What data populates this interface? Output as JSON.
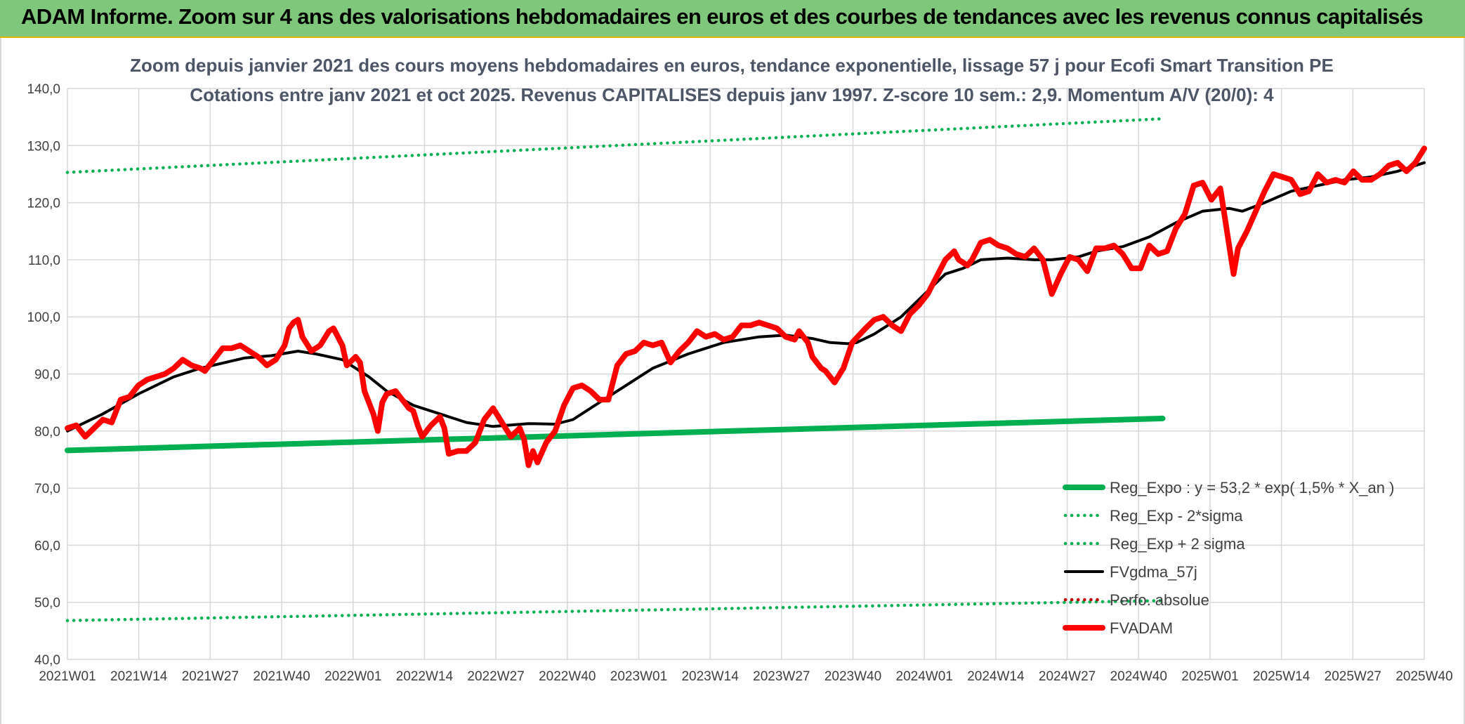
{
  "banner": {
    "title": "ADAM Informe. Zoom sur 4 ans des valorisations hebdomadaires en euros et des courbes de tendances avec les revenus connus capitalisés"
  },
  "colors": {
    "banner_bg": "#7fc77a",
    "reg_green": "#00b050",
    "fvadam_red": "#ff0000",
    "gdma_black": "#000000",
    "perfo_red": "#c00000"
  },
  "chart_data": {
    "type": "line",
    "title_lines": [
      "Zoom depuis janvier 2021 des cours moyens hebdomadaires en euros, tendance exponentielle, lissage 57 j pour Ecofi Smart Transition PE",
      "Cotations entre janv 2021 et oct 2025. Revenus CAPITALISES depuis janv 1997. Z-score 10 sem.: 2,9. Momentum A/V (20/0): 4"
    ],
    "xlabel": "",
    "ylabel": "",
    "ylim": [
      40,
      140
    ],
    "y_ticks": [
      "40,0",
      "50,0",
      "60,0",
      "70,0",
      "80,0",
      "90,0",
      "100,0",
      "110,0",
      "120,0",
      "130,0",
      "140,0"
    ],
    "x_ticks": [
      "2021W01",
      "2021W14",
      "2021W27",
      "2021W40",
      "2022W01",
      "2022W14",
      "2022W27",
      "2022W40",
      "2023W01",
      "2023W14",
      "2023W27",
      "2023W40",
      "2024W01",
      "2024W14",
      "2024W27",
      "2024W40",
      "2025W01",
      "2025W14",
      "2025W27",
      "2025W40"
    ],
    "grid": true,
    "legend_position": "bottom-right",
    "series": [
      {
        "name": "Reg_Expo : y = 53,2 * exp( 1,5% *  X_an )",
        "style": "solid-thick",
        "color": "#00b050",
        "points": [
          [
            0,
            76.6
          ],
          [
            247,
            82.2
          ]
        ]
      },
      {
        "name": "Reg_Exp - 2*sigma",
        "style": "dotted",
        "color": "#00b050",
        "points": [
          [
            0,
            46.8
          ],
          [
            247,
            50.3
          ]
        ]
      },
      {
        "name": "Reg_Exp + 2 sigma",
        "style": "dotted",
        "color": "#00b050",
        "points": [
          [
            0,
            125.3
          ],
          [
            247,
            134.7
          ]
        ]
      },
      {
        "name": "FVgdma_57j",
        "style": "solid",
        "color": "#000000",
        "points": [
          [
            0,
            80.0
          ],
          [
            8,
            83.0
          ],
          [
            16,
            86.5
          ],
          [
            24,
            89.5
          ],
          [
            30,
            91.0
          ],
          [
            40,
            92.8
          ],
          [
            46,
            93.2
          ],
          [
            52,
            94.0
          ],
          [
            56,
            93.5
          ],
          [
            62,
            92.5
          ],
          [
            68,
            89.5
          ],
          [
            72,
            87.0
          ],
          [
            78,
            84.5
          ],
          [
            84,
            83.0
          ],
          [
            90,
            81.5
          ],
          [
            96,
            80.8
          ],
          [
            104,
            81.3
          ],
          [
            110,
            81.2
          ],
          [
            114,
            82.0
          ],
          [
            120,
            85.0
          ],
          [
            126,
            88.0
          ],
          [
            132,
            91.0
          ],
          [
            140,
            93.5
          ],
          [
            148,
            95.5
          ],
          [
            156,
            96.5
          ],
          [
            162,
            96.8
          ],
          [
            168,
            96.2
          ],
          [
            172,
            95.5
          ],
          [
            176,
            95.3
          ],
          [
            178,
            95.5
          ],
          [
            182,
            97.0
          ],
          [
            188,
            100.0
          ],
          [
            192,
            103.0
          ],
          [
            198,
            107.5
          ],
          [
            202,
            108.5
          ],
          [
            206,
            110.0
          ],
          [
            212,
            110.3
          ],
          [
            218,
            110.0
          ],
          [
            222,
            110.0
          ],
          [
            228,
            110.5
          ],
          [
            232,
            111.5
          ],
          [
            238,
            112.3
          ],
          [
            244,
            114.0
          ],
          [
            250,
            116.5
          ],
          [
            256,
            118.5
          ],
          [
            262,
            119.0
          ],
          [
            265,
            118.5
          ],
          [
            270,
            120.0
          ],
          [
            276,
            122.0
          ],
          [
            282,
            123.0
          ],
          [
            288,
            124.0
          ],
          [
            294,
            124.5
          ],
          [
            300,
            125.5
          ],
          [
            306,
            127.0
          ]
        ]
      },
      {
        "name": "Perfo. absolue",
        "style": "dotted",
        "color": "#c00000",
        "points": []
      },
      {
        "name": "FVADAM",
        "style": "solid-thick",
        "color": "#ff0000",
        "points": [
          [
            0,
            80.5
          ],
          [
            2,
            81.0
          ],
          [
            4,
            79.0
          ],
          [
            6,
            80.5
          ],
          [
            8,
            82.0
          ],
          [
            10,
            81.5
          ],
          [
            12,
            85.5
          ],
          [
            14,
            86.0
          ],
          [
            16,
            88.0
          ],
          [
            18,
            89.0
          ],
          [
            20,
            89.5
          ],
          [
            22,
            90.0
          ],
          [
            24,
            91.0
          ],
          [
            26,
            92.5
          ],
          [
            28,
            91.5
          ],
          [
            30,
            91.0
          ],
          [
            31,
            90.5
          ],
          [
            33,
            92.5
          ],
          [
            35,
            94.5
          ],
          [
            37,
            94.5
          ],
          [
            39,
            95.0
          ],
          [
            41,
            94.0
          ],
          [
            43,
            93.0
          ],
          [
            45,
            91.5
          ],
          [
            47,
            92.5
          ],
          [
            49,
            95.0
          ],
          [
            50,
            98.0
          ],
          [
            51,
            99.0
          ],
          [
            52,
            99.5
          ],
          [
            53,
            96.5
          ],
          [
            55,
            94.0
          ],
          [
            57,
            95.0
          ],
          [
            59,
            97.5
          ],
          [
            60,
            98.0
          ],
          [
            62,
            95.0
          ],
          [
            63,
            91.5
          ],
          [
            65,
            93.0
          ],
          [
            66,
            92.0
          ],
          [
            67,
            87.0
          ],
          [
            69,
            83.0
          ],
          [
            70,
            80.0
          ],
          [
            71,
            85.0
          ],
          [
            72,
            86.5
          ],
          [
            74,
            87.0
          ],
          [
            76,
            85.0
          ],
          [
            77,
            84.0
          ],
          [
            78,
            83.5
          ],
          [
            79,
            81.0
          ],
          [
            80,
            79.0
          ],
          [
            82,
            81.0
          ],
          [
            84,
            82.5
          ],
          [
            85,
            80.5
          ],
          [
            86,
            76.0
          ],
          [
            88,
            76.5
          ],
          [
            90,
            76.5
          ],
          [
            92,
            78.0
          ],
          [
            94,
            82.0
          ],
          [
            96,
            84.0
          ],
          [
            98,
            81.5
          ],
          [
            100,
            79.0
          ],
          [
            102,
            80.5
          ],
          [
            103,
            78.5
          ],
          [
            104,
            74.0
          ],
          [
            105,
            76.5
          ],
          [
            106,
            74.5
          ],
          [
            108,
            78.0
          ],
          [
            110,
            80.0
          ],
          [
            112,
            84.5
          ],
          [
            114,
            87.5
          ],
          [
            116,
            88.0
          ],
          [
            118,
            87.0
          ],
          [
            120,
            85.5
          ],
          [
            122,
            85.5
          ],
          [
            124,
            91.5
          ],
          [
            126,
            93.5
          ],
          [
            128,
            94.0
          ],
          [
            130,
            95.5
          ],
          [
            132,
            95.0
          ],
          [
            134,
            95.5
          ],
          [
            136,
            92.0
          ],
          [
            138,
            94.0
          ],
          [
            140,
            95.5
          ],
          [
            142,
            97.5
          ],
          [
            144,
            96.5
          ],
          [
            146,
            97.0
          ],
          [
            148,
            96.0
          ],
          [
            150,
            96.5
          ],
          [
            152,
            98.5
          ],
          [
            154,
            98.5
          ],
          [
            156,
            99.0
          ],
          [
            158,
            98.5
          ],
          [
            160,
            98.0
          ],
          [
            162,
            96.5
          ],
          [
            164,
            96.0
          ],
          [
            165,
            97.5
          ],
          [
            167,
            95.5
          ],
          [
            168,
            93.0
          ],
          [
            170,
            91.0
          ],
          [
            171,
            90.5
          ],
          [
            173,
            88.5
          ],
          [
            175,
            91.0
          ],
          [
            177,
            95.5
          ],
          [
            180,
            98.0
          ],
          [
            182,
            99.5
          ],
          [
            184,
            100.0
          ],
          [
            186,
            98.5
          ],
          [
            188,
            97.5
          ],
          [
            190,
            100.5
          ],
          [
            192,
            102.0
          ],
          [
            194,
            104.0
          ],
          [
            196,
            107.0
          ],
          [
            198,
            110.0
          ],
          [
            200,
            111.5
          ],
          [
            201,
            110.0
          ],
          [
            203,
            109.0
          ],
          [
            204,
            110.0
          ],
          [
            206,
            113.0
          ],
          [
            208,
            113.5
          ],
          [
            210,
            112.5
          ],
          [
            212,
            112.0
          ],
          [
            214,
            111.0
          ],
          [
            216,
            110.5
          ],
          [
            218,
            112.0
          ],
          [
            220,
            110.0
          ],
          [
            222,
            104.0
          ],
          [
            224,
            107.5
          ],
          [
            226,
            110.5
          ],
          [
            228,
            110.0
          ],
          [
            230,
            108.0
          ],
          [
            232,
            112.0
          ],
          [
            234,
            112.0
          ],
          [
            236,
            112.5
          ],
          [
            238,
            111.0
          ],
          [
            240,
            108.5
          ],
          [
            242,
            108.5
          ],
          [
            244,
            112.5
          ],
          [
            246,
            111.0
          ],
          [
            248,
            111.5
          ],
          [
            250,
            115.5
          ],
          [
            252,
            118.0
          ],
          [
            254,
            123.0
          ],
          [
            256,
            123.5
          ],
          [
            258,
            120.5
          ],
          [
            260,
            122.5
          ],
          [
            261,
            117.5
          ],
          [
            263,
            107.5
          ],
          [
            264,
            112.0
          ],
          [
            266,
            115.0
          ],
          [
            268,
            118.5
          ],
          [
            270,
            122.0
          ],
          [
            272,
            125.0
          ],
          [
            274,
            124.5
          ],
          [
            276,
            124.0
          ],
          [
            278,
            121.5
          ],
          [
            280,
            122.0
          ],
          [
            282,
            125.0
          ],
          [
            284,
            123.5
          ],
          [
            286,
            124.0
          ],
          [
            288,
            123.5
          ],
          [
            290,
            125.5
          ],
          [
            292,
            124.0
          ],
          [
            294,
            124.0
          ],
          [
            296,
            125.0
          ],
          [
            298,
            126.5
          ],
          [
            300,
            127.0
          ],
          [
            302,
            125.5
          ],
          [
            304,
            127.0
          ],
          [
            306,
            129.5
          ]
        ]
      }
    ]
  }
}
